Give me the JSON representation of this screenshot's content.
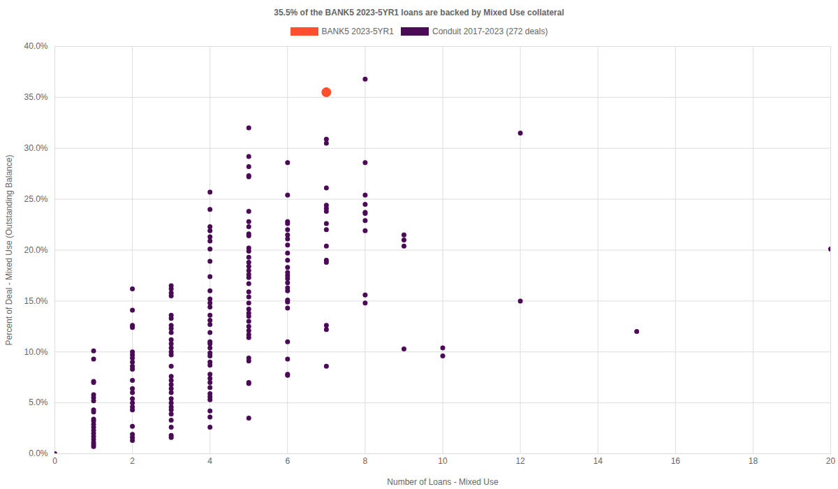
{
  "chart_data": {
    "type": "scatter",
    "title": "35.5% of the BANK5 2023-5YR1 loans are backed by Mixed Use collateral",
    "x_label": "Number of Loans - Mixed Use",
    "y_label": "Percent of Deal - Mixed Use (Outstanding Balance)",
    "legend": "top",
    "grid": true,
    "xlim": [
      0,
      20
    ],
    "xticks": [
      0,
      2,
      4,
      6,
      8,
      10,
      12,
      14,
      16,
      18,
      20
    ],
    "ylim": [
      0,
      40
    ],
    "yticks": [
      {
        "value": 0,
        "label": "0.0%"
      },
      {
        "value": 5,
        "label": "5.0%"
      },
      {
        "value": 10,
        "label": "10.0%"
      },
      {
        "value": 15,
        "label": "15.0%"
      },
      {
        "value": 20,
        "label": "20.0%"
      },
      {
        "value": 25,
        "label": "25.0%"
      },
      {
        "value": 30,
        "label": "30.0%"
      },
      {
        "value": 35,
        "label": "35.0%"
      },
      {
        "value": 40,
        "label": "40.0%"
      }
    ],
    "series": [
      {
        "name": "BANK5 2023-5YR1",
        "color": "#ff4f2e",
        "marker": "circle",
        "x": [
          7
        ],
        "values": [
          35.5
        ]
      },
      {
        "name": "Conduit 2017-2023 (272 deals)",
        "color": "#4b0a55",
        "marker": "circle",
        "x": [
          0,
          1,
          1,
          1,
          1,
          1,
          1,
          1,
          1,
          1,
          1,
          1,
          1,
          1,
          1,
          1,
          1,
          1,
          1,
          1,
          1,
          2,
          2,
          2,
          2,
          2,
          2,
          2,
          2,
          2,
          2,
          2,
          2,
          2,
          2,
          2,
          2,
          2,
          2,
          2,
          2,
          2,
          3,
          3,
          3,
          3,
          3,
          3,
          3,
          3,
          3,
          3,
          3,
          3,
          3,
          3,
          3,
          3,
          3,
          3,
          3,
          3,
          3,
          3,
          3,
          3,
          3,
          3,
          3,
          3,
          3,
          4,
          4,
          4,
          4,
          4,
          4,
          4,
          4,
          4,
          4,
          4,
          4,
          4,
          4,
          4,
          4,
          4,
          4,
          4,
          4,
          4,
          4,
          4,
          4,
          4,
          4,
          4,
          4,
          4,
          4,
          4,
          4,
          4,
          4,
          5,
          5,
          5,
          5,
          5,
          5,
          5,
          5,
          5,
          5,
          5,
          5,
          5,
          5,
          5,
          5,
          5,
          5,
          5,
          5,
          5,
          5,
          5,
          5,
          5,
          5,
          5,
          5,
          5,
          5,
          5,
          5,
          5,
          5,
          5,
          6,
          6,
          6,
          6,
          6,
          6,
          6,
          6,
          6,
          6,
          6,
          6,
          6,
          6,
          6,
          6,
          6,
          6,
          6,
          6,
          6,
          6,
          6,
          6,
          7,
          7,
          7,
          7,
          7,
          7,
          7,
          7,
          7,
          7,
          7,
          7,
          7,
          7,
          8,
          8,
          8,
          8,
          8,
          8,
          8,
          8,
          8,
          8,
          9,
          9,
          9,
          9,
          10,
          10,
          12,
          12,
          15,
          20
        ],
        "values": [
          0.0,
          10.1,
          9.3,
          7.1,
          7.0,
          5.8,
          5.5,
          5.2,
          4.3,
          4.1,
          3.4,
          3.2,
          2.9,
          2.6,
          2.3,
          2.0,
          1.7,
          1.4,
          1.1,
          0.9,
          0.7,
          16.2,
          14.1,
          12.6,
          12.4,
          10.0,
          9.7,
          9.4,
          9.0,
          8.6,
          8.3,
          7.2,
          6.4,
          6.0,
          5.4,
          5.0,
          4.6,
          4.3,
          2.7,
          1.9,
          1.6,
          1.3,
          16.5,
          16.2,
          15.8,
          15.5,
          13.6,
          13.3,
          12.6,
          12.3,
          11.9,
          11.2,
          10.8,
          10.4,
          10.0,
          9.7,
          8.6,
          7.6,
          7.2,
          6.8,
          6.4,
          6.0,
          5.4,
          5.0,
          4.6,
          4.3,
          3.9,
          3.3,
          2.6,
          1.8,
          1.6,
          25.7,
          24.0,
          22.3,
          21.9,
          21.3,
          20.9,
          20.1,
          18.9,
          17.4,
          16.0,
          15.2,
          14.8,
          14.4,
          13.6,
          13.1,
          12.7,
          11.9,
          11.0,
          10.8,
          10.4,
          9.9,
          9.6,
          9.0,
          8.7,
          7.8,
          7.4,
          7.0,
          6.5,
          5.9,
          5.6,
          5.3,
          4.2,
          3.6,
          2.6,
          32.0,
          29.2,
          28.2,
          27.3,
          27.2,
          23.8,
          22.8,
          22.3,
          21.6,
          21.4,
          20.2,
          19.9,
          19.3,
          18.8,
          18.4,
          18.0,
          17.6,
          17.3,
          16.7,
          15.9,
          15.4,
          14.8,
          14.2,
          13.8,
          13.5,
          13.0,
          12.5,
          12.1,
          11.7,
          11.4,
          9.4,
          9.1,
          7.0,
          6.9,
          3.5,
          28.6,
          25.4,
          22.8,
          22.6,
          22.0,
          21.5,
          21.1,
          20.5,
          19.7,
          19.0,
          18.3,
          17.8,
          17.5,
          17.2,
          16.8,
          16.3,
          16.0,
          15.1,
          14.9,
          14.3,
          11.0,
          9.3,
          7.8,
          7.7,
          30.9,
          30.5,
          26.1,
          24.4,
          24.1,
          23.8,
          22.6,
          22.0,
          20.4,
          19.0,
          18.8,
          12.6,
          12.2,
          8.6,
          36.8,
          28.6,
          25.4,
          24.5,
          23.7,
          23.6,
          22.9,
          21.9,
          15.6,
          14.8,
          21.5,
          21.0,
          20.4,
          10.3,
          10.4,
          9.6,
          31.5,
          15.0,
          12.0,
          20.1
        ]
      }
    ]
  }
}
